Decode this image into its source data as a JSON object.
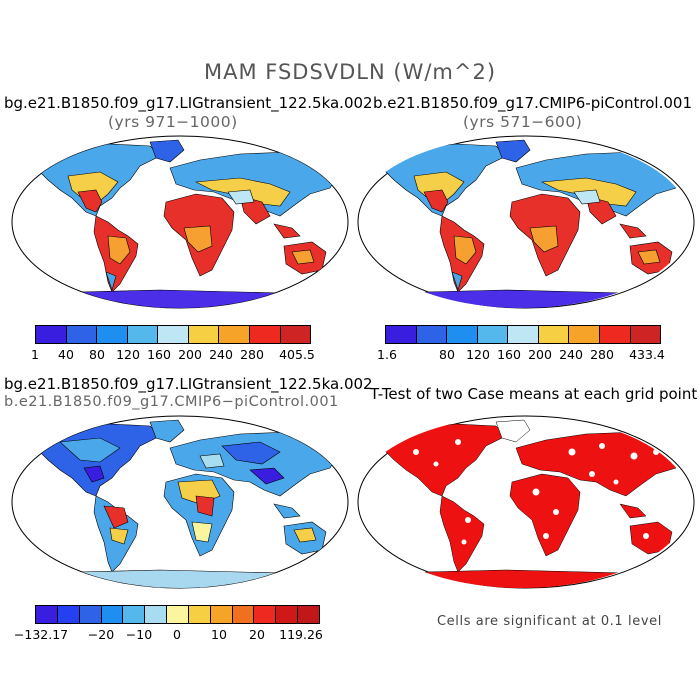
{
  "title": "MAM FSDSVDLN (W/m^2)",
  "panels": {
    "top_left": {
      "title": "bg.e21.B1850.f09_g17.LIGtransient_122.5ka.002",
      "subtitle": "(yrs 971−1000)",
      "legend_ticks": [
        "1",
        "40",
        "80",
        "120",
        "160",
        "200",
        "240",
        "280",
        "405.5"
      ],
      "legend_colors": [
        "#3a1ee0",
        "#2e63e8",
        "#1e8ff0",
        "#54b8ec",
        "#bfe6f5",
        "#f7cf42",
        "#f6a32a",
        "#ee2a20",
        "#cf2424"
      ]
    },
    "top_right": {
      "title": "b.e21.B1850.f09_g17.CMIP6-piControl.001",
      "subtitle": "(yrs 571−600)",
      "legend_ticks": [
        "1.6",
        "80",
        "120",
        "160",
        "200",
        "240",
        "280",
        "433.4"
      ],
      "legend_colors": [
        "#3a1ee0",
        "#2e63e8",
        "#1e8ff0",
        "#54b8ec",
        "#bfe6f5",
        "#f7cf42",
        "#f6a32a",
        "#ee2a20",
        "#cf2424"
      ]
    },
    "bottom_left": {
      "title": "bg.e21.B1850.f09_g17.LIGtransient_122.5ka.002",
      "subtitle": "b.e21.B1850.f09_g17.CMIP6−piControl.001",
      "legend_ticks": [
        "−132.17",
        "−20",
        "−10",
        "0",
        "10",
        "20",
        "119.26"
      ],
      "legend_colors": [
        "#3a1ee0",
        "#2440f0",
        "#2e63e8",
        "#1e8ff0",
        "#54b8ec",
        "#a8dcf0",
        "#fbf5a0",
        "#f7cf42",
        "#f6a32a",
        "#f07020",
        "#ee2a20",
        "#d01818",
        "#c01818"
      ]
    },
    "bottom_right": {
      "title": "T-Test of two Case means at each grid point",
      "note": "Cells are significant at 0.1 level"
    }
  },
  "colors": {
    "land_hot": "#e8302a",
    "land_orange": "#f5a030",
    "land_yellow": "#f6cf48",
    "land_light": "#bfe6f5",
    "land_blue": "#4aa8ea",
    "land_dblue": "#2e63e8",
    "ice": "#4a2ee8",
    "sig_red": "#ee1111",
    "diff_ice": "#a8d8f0"
  }
}
